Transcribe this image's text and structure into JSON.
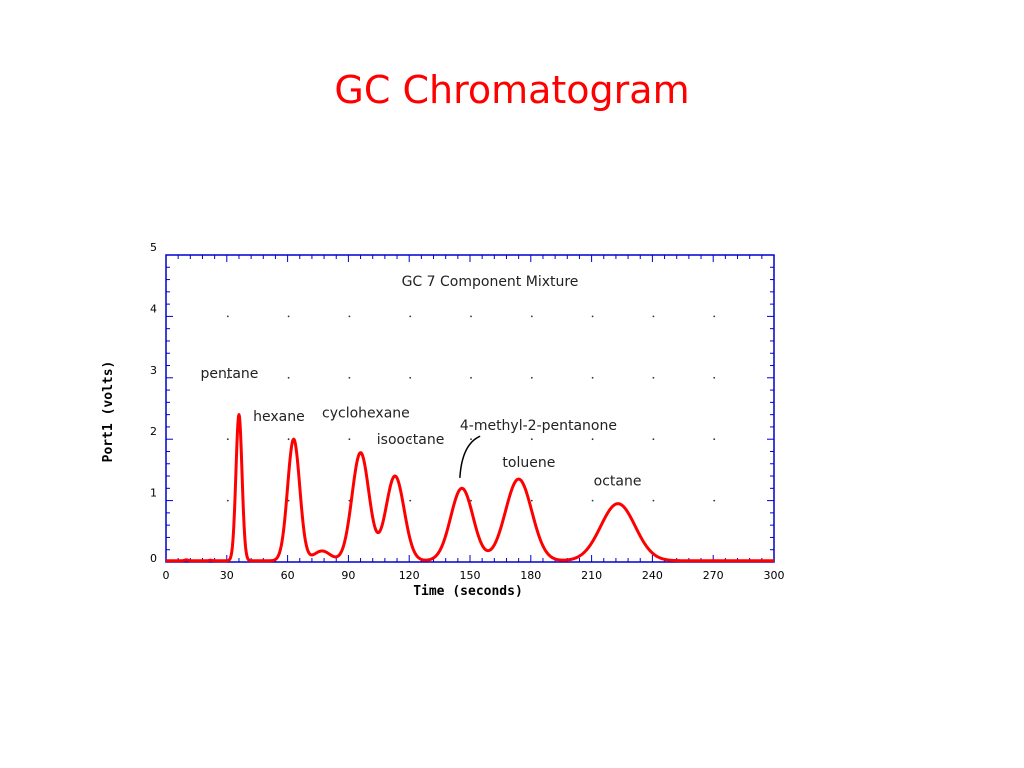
{
  "slide": {
    "title": "GC Chromatogram"
  },
  "chart_data": {
    "type": "line",
    "title": "GC 7 Component Mixture",
    "xlabel": "Time (seconds)",
    "ylabel": "Port1 (volts)",
    "xlim": [
      0,
      300
    ],
    "ylim": [
      0,
      5
    ],
    "xticks": [
      0,
      30,
      60,
      90,
      120,
      150,
      180,
      210,
      240,
      270,
      300
    ],
    "yticks": [
      0,
      1,
      2,
      3,
      4,
      5
    ],
    "grid": "dotted",
    "colors": {
      "series": "#ff0000",
      "axis": "#0000cc"
    },
    "baseline": 0.02,
    "signal_start": 32,
    "signal_end": 300,
    "peaks": [
      {
        "name": "pentane",
        "time": 36,
        "height": 2.38,
        "width": 1.5
      },
      {
        "name": "hexane",
        "time": 63,
        "height": 1.98,
        "width": 3.0
      },
      {
        "name": "",
        "time": 77,
        "height": 0.16,
        "width": 4.0
      },
      {
        "name": "cyclohexane",
        "time": 96,
        "height": 1.76,
        "width": 4.2
      },
      {
        "name": "isooctane",
        "time": 113,
        "height": 1.38,
        "width": 4.5
      },
      {
        "name": "4-methyl-2-pentanone",
        "time": 146,
        "height": 1.18,
        "width": 5.5
      },
      {
        "name": "toluene",
        "time": 174,
        "height": 1.33,
        "width": 6.5
      },
      {
        "name": "octane",
        "time": 223,
        "height": 0.93,
        "width": 8.5
      }
    ],
    "annotations": [
      {
        "text": "pentane",
        "x": 17,
        "y": 3.0
      },
      {
        "text": "hexane",
        "x": 43,
        "y": 2.3
      },
      {
        "text": "cyclohexane",
        "x": 77,
        "y": 2.35
      },
      {
        "text": "isooctane",
        "x": 104,
        "y": 1.92
      },
      {
        "text": "4-methyl-2-pentanone",
        "x": 145,
        "y": 2.15
      },
      {
        "text": "toluene",
        "x": 166,
        "y": 1.55
      },
      {
        "text": "octane",
        "x": 211,
        "y": 1.25
      }
    ],
    "arrow": {
      "from": [
        155,
        2.05
      ],
      "to": [
        145,
        1.37
      ]
    }
  }
}
